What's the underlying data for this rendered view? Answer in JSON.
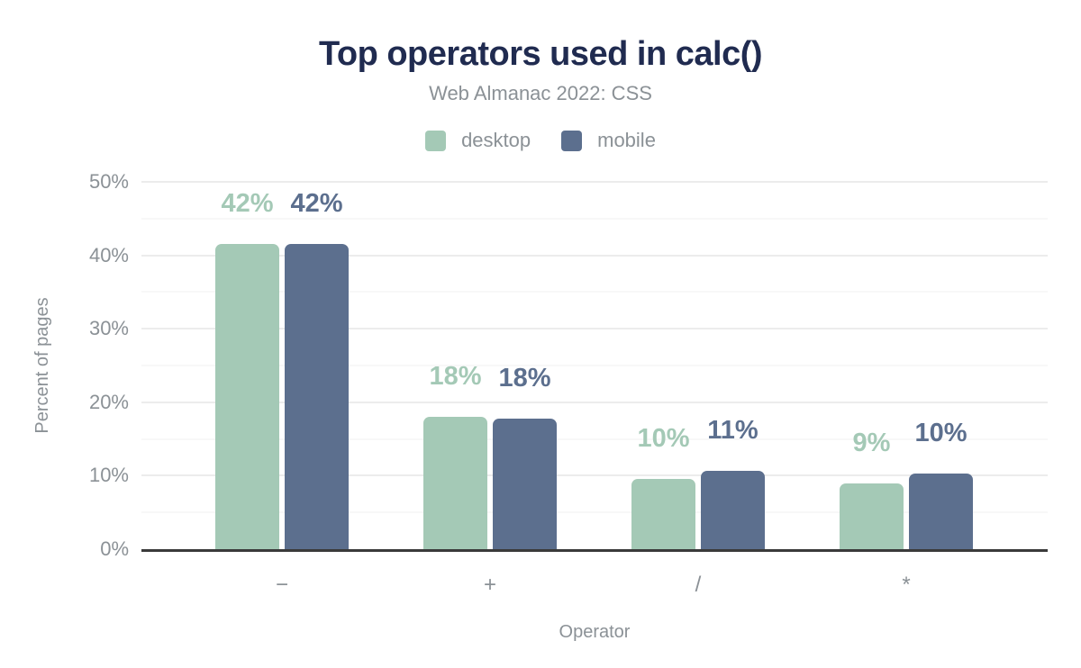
{
  "header": {
    "title": "Top operators used in calc()",
    "subtitle": "Web Almanac 2022: CSS"
  },
  "chart_data": {
    "type": "bar",
    "title": "Top operators used in calc()",
    "subtitle": "Web Almanac 2022: CSS",
    "categories": [
      "−",
      "+",
      "/",
      "*"
    ],
    "category_names": [
      "minus",
      "plus",
      "divide",
      "multiply"
    ],
    "series": [
      {
        "name": "desktop",
        "color": "#a4c9b6",
        "values": [
          41.5,
          18.0,
          9.5,
          9.0
        ],
        "labels": [
          "42%",
          "18%",
          "10%",
          "9%"
        ]
      },
      {
        "name": "mobile",
        "color": "#5c6f8e",
        "values": [
          41.5,
          17.8,
          10.7,
          10.3
        ],
        "labels": [
          "42%",
          "18%",
          "11%",
          "10%"
        ]
      }
    ],
    "xlabel": "Operator",
    "ylabel": "Percent of pages",
    "ylim": [
      0,
      50
    ],
    "yticks": [
      0,
      10,
      20,
      30,
      40,
      50
    ],
    "ytick_labels": [
      "0%",
      "10%",
      "20%",
      "30%",
      "40%",
      "50%"
    ],
    "minor_grid_step": 5,
    "grid": true,
    "legend_position": "top"
  },
  "colors": {
    "title": "#202b50",
    "muted_text": "#8b9196",
    "axis_line": "#3a3a3a",
    "gridline_major": "#ececec",
    "gridline_minor": "#f8f8f8",
    "background": "#ffffff",
    "desktop": "#a4c9b6",
    "mobile": "#5c6f8e"
  }
}
